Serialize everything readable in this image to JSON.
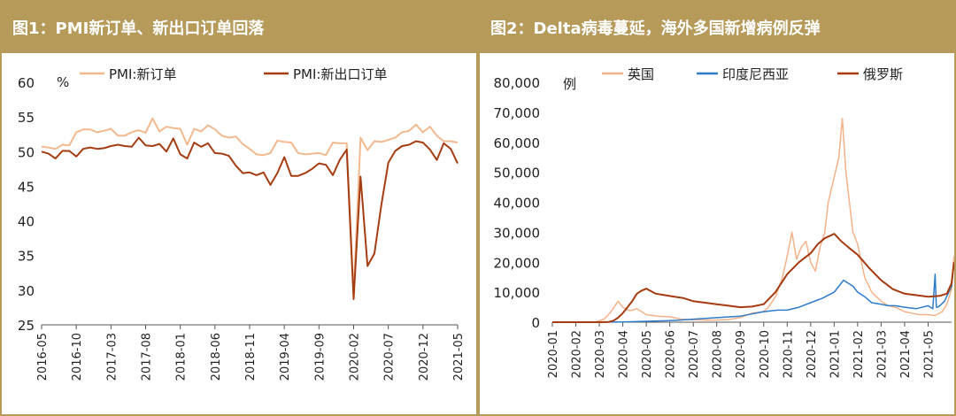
{
  "colors": {
    "gold": "#b59a5a",
    "pmi_new_orders": "#f2b98e",
    "pmi_new_export": "#a53d12",
    "uk": "#f4b289",
    "indonesia": "#2e7cc8",
    "russia": "#a63a10"
  },
  "chart_data": [
    {
      "type": "line",
      "title": "图1：PMI新订单、新出口订单回落",
      "ylabel": "%",
      "ylim": [
        25,
        60
      ],
      "yticks": [
        25,
        30,
        35,
        40,
        45,
        50,
        55,
        60
      ],
      "x_start": "2016-05",
      "x_end": "2021-05",
      "xticks": [
        "2016-05",
        "2016-10",
        "2017-03",
        "2017-08",
        "2018-01",
        "2018-06",
        "2018-11",
        "2019-04",
        "2019-09",
        "2020-02",
        "2020-07",
        "2020-12",
        "2021-05"
      ],
      "legend": "top",
      "series": [
        {
          "name": "PMI:新订单",
          "color": "#f2b98e",
          "values": [
            50.7,
            50.6,
            50.4,
            51.0,
            50.9,
            52.8,
            53.2,
            53.2,
            52.8,
            53.0,
            53.3,
            52.3,
            52.3,
            52.8,
            53.1,
            52.7,
            54.8,
            52.9,
            53.6,
            53.4,
            53.3,
            51.0,
            53.3,
            52.9,
            53.8,
            53.2,
            52.3,
            52.0,
            52.2,
            51.1,
            50.4,
            49.6,
            49.5,
            49.8,
            51.6,
            51.4,
            51.3,
            49.8,
            49.6,
            49.7,
            49.8,
            49.5,
            51.3,
            51.2,
            51.2,
            29.3,
            52.0,
            50.2,
            51.5,
            51.4,
            51.7,
            52.0,
            52.8,
            53.0,
            53.9,
            52.8,
            53.6,
            52.3,
            51.5,
            51.5,
            51.3
          ]
        },
        {
          "name": "PMI:新出口订单",
          "color": "#a53d12",
          "values": [
            50.0,
            49.7,
            49.0,
            50.1,
            50.1,
            49.3,
            50.4,
            50.6,
            50.4,
            50.5,
            50.8,
            51.0,
            50.8,
            50.7,
            52.0,
            50.9,
            50.8,
            51.1,
            50.0,
            51.9,
            49.6,
            49.0,
            51.3,
            50.7,
            51.2,
            49.8,
            49.7,
            49.4,
            48.0,
            46.9,
            47.0,
            46.6,
            47.0,
            45.2,
            46.9,
            49.2,
            46.5,
            46.5,
            46.9,
            47.5,
            48.3,
            48.1,
            46.6,
            48.8,
            50.3,
            28.7,
            46.4,
            33.5,
            35.3,
            42.3,
            48.4,
            50.1,
            50.8,
            51.0,
            51.5,
            51.3,
            50.3,
            48.8,
            51.2,
            50.4,
            48.3
          ]
        }
      ]
    },
    {
      "type": "line",
      "title": "图2：Delta病毒蔓延，海外多国新增病例反弹",
      "ylabel": "例",
      "ylim": [
        0,
        80000
      ],
      "yticks": [
        0,
        10000,
        20000,
        30000,
        40000,
        50000,
        60000,
        70000,
        80000
      ],
      "ytick_labels": [
        "0",
        "10,000",
        "20,000",
        "30,000",
        "40,000",
        "50,000",
        "60,000",
        "70,000",
        "80,000"
      ],
      "x_start": "2020-01",
      "x_end": "2021-06",
      "xticks": [
        "2020-01",
        "2020-02",
        "2020-03",
        "2020-04",
        "2020-05",
        "2020-06",
        "2020-07",
        "2020-08",
        "2020-09",
        "2020-10",
        "2020-11",
        "2020-12",
        "2021-01",
        "2021-02",
        "2021-03",
        "2021-04",
        "2021-05"
      ],
      "legend": "top",
      "series": [
        {
          "name": "英国",
          "color": "#f4b289",
          "x": [
            0,
            1.8,
            2.2,
            2.5,
            2.8,
            3.0,
            3.3,
            3.6,
            4.0,
            4.5,
            5.0,
            5.5,
            6.0,
            6.5,
            7.0,
            7.5,
            8.0,
            8.5,
            9.0,
            9.2,
            9.5,
            9.8,
            10.0,
            10.2,
            10.4,
            10.6,
            10.8,
            11.0,
            11.2,
            11.4,
            11.6,
            11.75,
            11.9,
            12.05,
            12.2,
            12.35,
            12.5,
            12.65,
            12.8,
            13.0,
            13.3,
            13.6,
            14.0,
            14.3,
            14.6,
            15.0,
            15.3,
            15.6,
            16.0,
            16.3,
            16.6,
            16.8,
            17.0,
            17.1
          ],
          "values": [
            0,
            0,
            1000,
            3500,
            7000,
            5000,
            3800,
            4500,
            2500,
            2000,
            1800,
            1000,
            800,
            700,
            700,
            900,
            1500,
            3000,
            3500,
            5000,
            8500,
            15000,
            22000,
            30000,
            21000,
            25000,
            27000,
            20000,
            17000,
            25000,
            30000,
            40000,
            45000,
            50000,
            55000,
            68000,
            50000,
            40000,
            30000,
            26000,
            15000,
            10000,
            7000,
            5500,
            5000,
            3500,
            3000,
            2500,
            2500,
            2200,
            3500,
            6000,
            11000,
            22000
          ]
        },
        {
          "name": "印度尼西亚",
          "color": "#2e7cc8",
          "x": [
            0,
            2.0,
            3.0,
            4.0,
            5.0,
            6.0,
            7.0,
            8.0,
            9.0,
            9.6,
            10.0,
            10.5,
            11.0,
            11.5,
            12.0,
            12.2,
            12.4,
            12.6,
            12.8,
            13.0,
            13.3,
            13.6,
            14.0,
            14.3,
            14.6,
            15.0,
            15.5,
            16.0,
            16.2,
            16.3,
            16.35,
            16.4,
            16.5,
            16.7,
            17.0,
            17.1
          ],
          "values": [
            0,
            0,
            100,
            300,
            500,
            1000,
            1500,
            2000,
            3500,
            4000,
            4000,
            5000,
            6500,
            8000,
            10000,
            12000,
            14000,
            13000,
            12000,
            10000,
            8500,
            6500,
            6000,
            5500,
            5500,
            5000,
            4500,
            5500,
            4500,
            16000,
            5000,
            5000,
            5500,
            7000,
            12000,
            20000
          ]
        },
        {
          "name": "俄罗斯",
          "color": "#a63a10",
          "x": [
            0,
            2.0,
            2.4,
            2.6,
            2.8,
            3.0,
            3.2,
            3.4,
            3.6,
            3.8,
            4.0,
            4.4,
            4.8,
            5.2,
            5.6,
            6.0,
            6.5,
            7.0,
            7.5,
            8.0,
            8.5,
            9.0,
            9.5,
            10.0,
            10.5,
            11.0,
            11.3,
            11.6,
            12.0,
            12.3,
            12.6,
            13.0,
            13.5,
            14.0,
            14.5,
            15.0,
            15.5,
            16.0,
            16.5,
            16.8,
            17.0,
            17.1
          ],
          "values": [
            0,
            0,
            100,
            500,
            1500,
            3000,
            5000,
            7000,
            9500,
            10500,
            11200,
            9500,
            9000,
            8500,
            8000,
            7000,
            6500,
            6000,
            5500,
            5000,
            5200,
            6000,
            10000,
            16000,
            20000,
            23000,
            26000,
            28000,
            29500,
            27000,
            25000,
            22500,
            18000,
            14000,
            11000,
            9500,
            9000,
            8500,
            8800,
            9500,
            13000,
            20000
          ]
        }
      ]
    }
  ]
}
